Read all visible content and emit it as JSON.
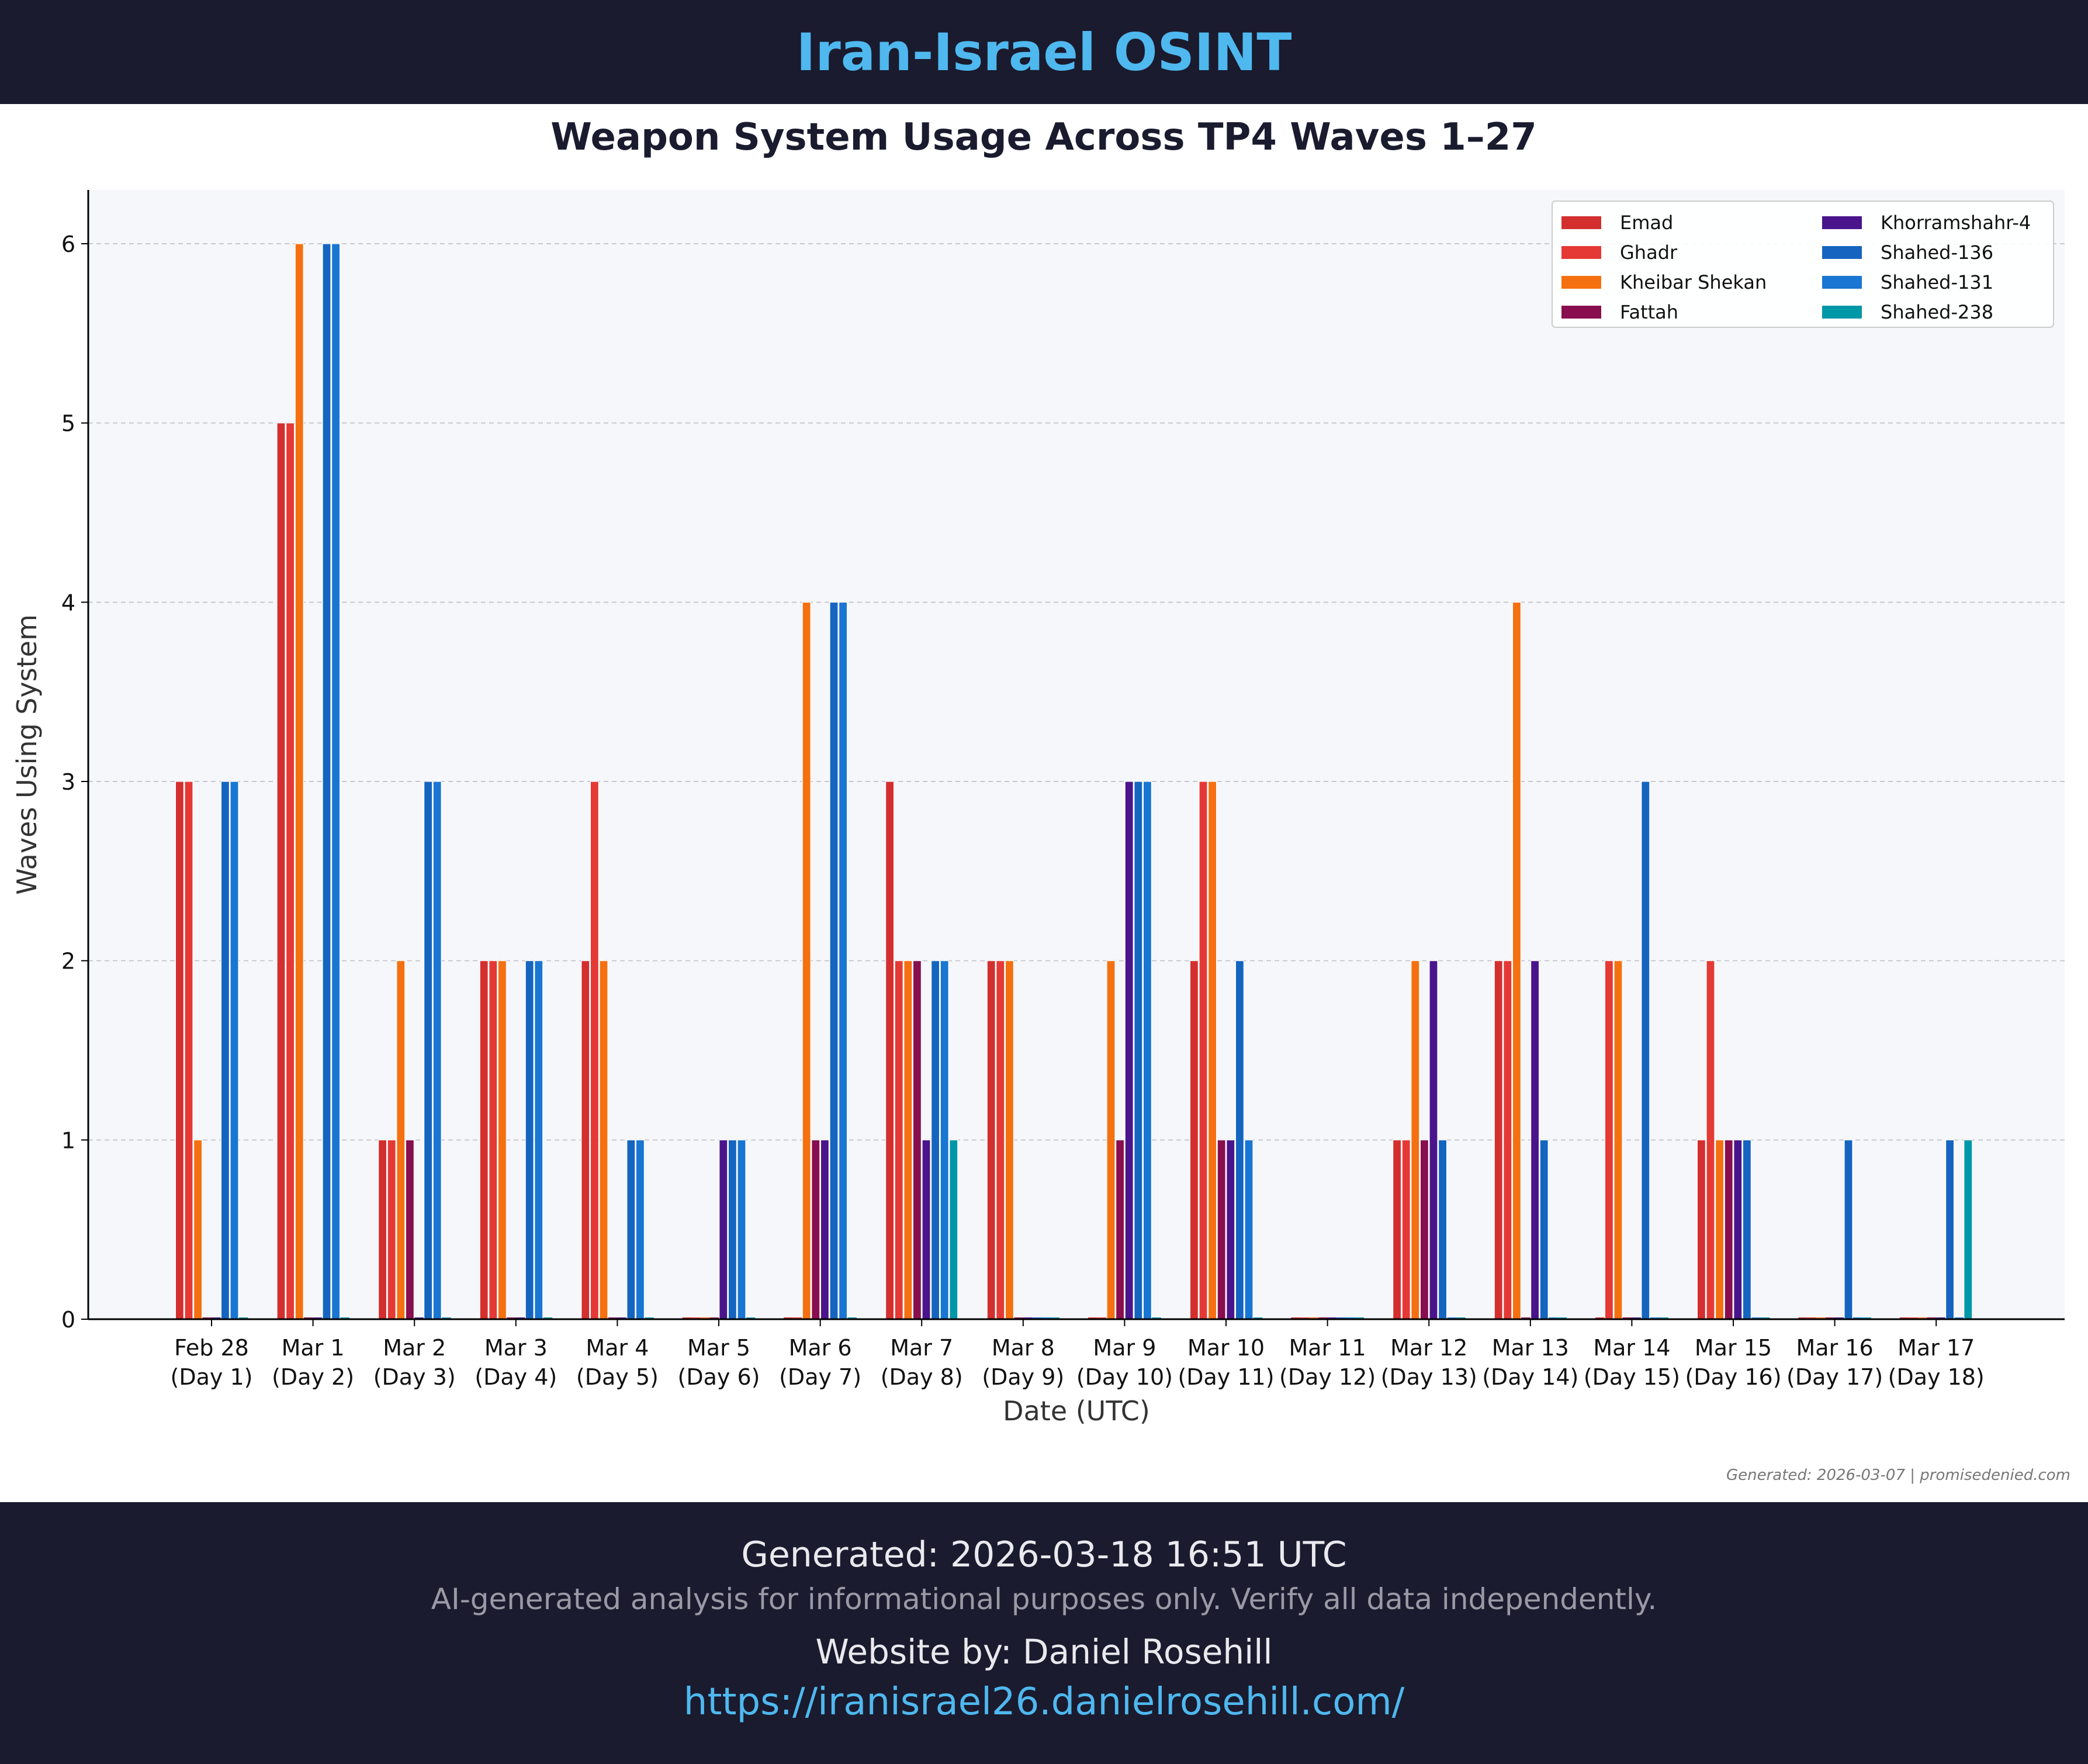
{
  "header": {
    "title": "Iran-Israel OSINT"
  },
  "chart_data": {
    "type": "bar",
    "title": "Weapon System Usage Across TP4 Waves 1–27",
    "xlabel": "Date (UTC)",
    "ylabel": "Waves Using System",
    "ylim": [
      0,
      6.3
    ],
    "yticks": [
      0,
      1,
      2,
      3,
      4,
      5,
      6
    ],
    "grid": "y-dashed",
    "legend_position": "top-right",
    "categories": [
      [
        "Feb 28",
        "(Day 1)"
      ],
      [
        "Mar 1",
        "(Day 2)"
      ],
      [
        "Mar 2",
        "(Day 3)"
      ],
      [
        "Mar 3",
        "(Day 4)"
      ],
      [
        "Mar 4",
        "(Day 5)"
      ],
      [
        "Mar 5",
        "(Day 6)"
      ],
      [
        "Mar 6",
        "(Day 7)"
      ],
      [
        "Mar 7",
        "(Day 8)"
      ],
      [
        "Mar 8",
        "(Day 9)"
      ],
      [
        "Mar 9",
        "(Day 10)"
      ],
      [
        "Mar 10",
        "(Day 11)"
      ],
      [
        "Mar 11",
        "(Day 12)"
      ],
      [
        "Mar 12",
        "(Day 13)"
      ],
      [
        "Mar 13",
        "(Day 14)"
      ],
      [
        "Mar 14",
        "(Day 15)"
      ],
      [
        "Mar 15",
        "(Day 16)"
      ],
      [
        "Mar 16",
        "(Day 17)"
      ],
      [
        "Mar 17",
        "(Day 18)"
      ]
    ],
    "series": [
      {
        "name": "Emad",
        "color": "#d32f2f",
        "values": [
          3,
          5,
          1,
          2,
          2,
          0,
          0,
          3,
          2,
          0,
          2,
          0,
          1,
          2,
          0,
          1,
          0,
          0
        ]
      },
      {
        "name": "Ghadr",
        "color": "#e53935",
        "values": [
          3,
          5,
          1,
          2,
          3,
          0,
          0,
          2,
          2,
          0,
          3,
          0,
          1,
          2,
          2,
          2,
          0,
          0
        ]
      },
      {
        "name": "Kheibar Shekan",
        "color": "#f57010",
        "values": [
          1,
          6,
          2,
          2,
          2,
          0,
          4,
          2,
          2,
          2,
          3,
          0,
          2,
          4,
          2,
          1,
          0,
          0
        ]
      },
      {
        "name": "Fattah",
        "color": "#880e4f",
        "values": [
          0,
          0,
          1,
          0,
          0,
          0,
          1,
          2,
          0,
          1,
          1,
          0,
          1,
          0,
          0,
          1,
          0,
          0
        ]
      },
      {
        "name": "Khorramshahr-4",
        "color": "#4a148c",
        "values": [
          0,
          0,
          0,
          0,
          0,
          1,
          1,
          1,
          0,
          3,
          1,
          0,
          2,
          2,
          0,
          1,
          0,
          0
        ]
      },
      {
        "name": "Shahed-136",
        "color": "#1565c0",
        "values": [
          3,
          6,
          3,
          2,
          1,
          1,
          4,
          2,
          0,
          3,
          2,
          0,
          1,
          1,
          3,
          1,
          1,
          1
        ]
      },
      {
        "name": "Shahed-131",
        "color": "#1976d2",
        "values": [
          3,
          6,
          3,
          2,
          1,
          1,
          4,
          2,
          0,
          3,
          1,
          0,
          0,
          0,
          0,
          0,
          0,
          0
        ]
      },
      {
        "name": "Shahed-238",
        "color": "#0097a7",
        "values": [
          0,
          0,
          0,
          0,
          0,
          0,
          0,
          1,
          0,
          0,
          0,
          0,
          0,
          0,
          0,
          0,
          0,
          1
        ]
      }
    ],
    "watermark": "Generated: 2026-03-07 | promisedenied.com"
  },
  "footer": {
    "generated": "Generated: 2026-03-18 16:51 UTC",
    "disclaimer": "AI-generated analysis for informational purposes only. Verify all data independently.",
    "website_by": "Website by: Daniel Rosehill",
    "url": "https://iranisrael26.danielrosehill.com/"
  }
}
